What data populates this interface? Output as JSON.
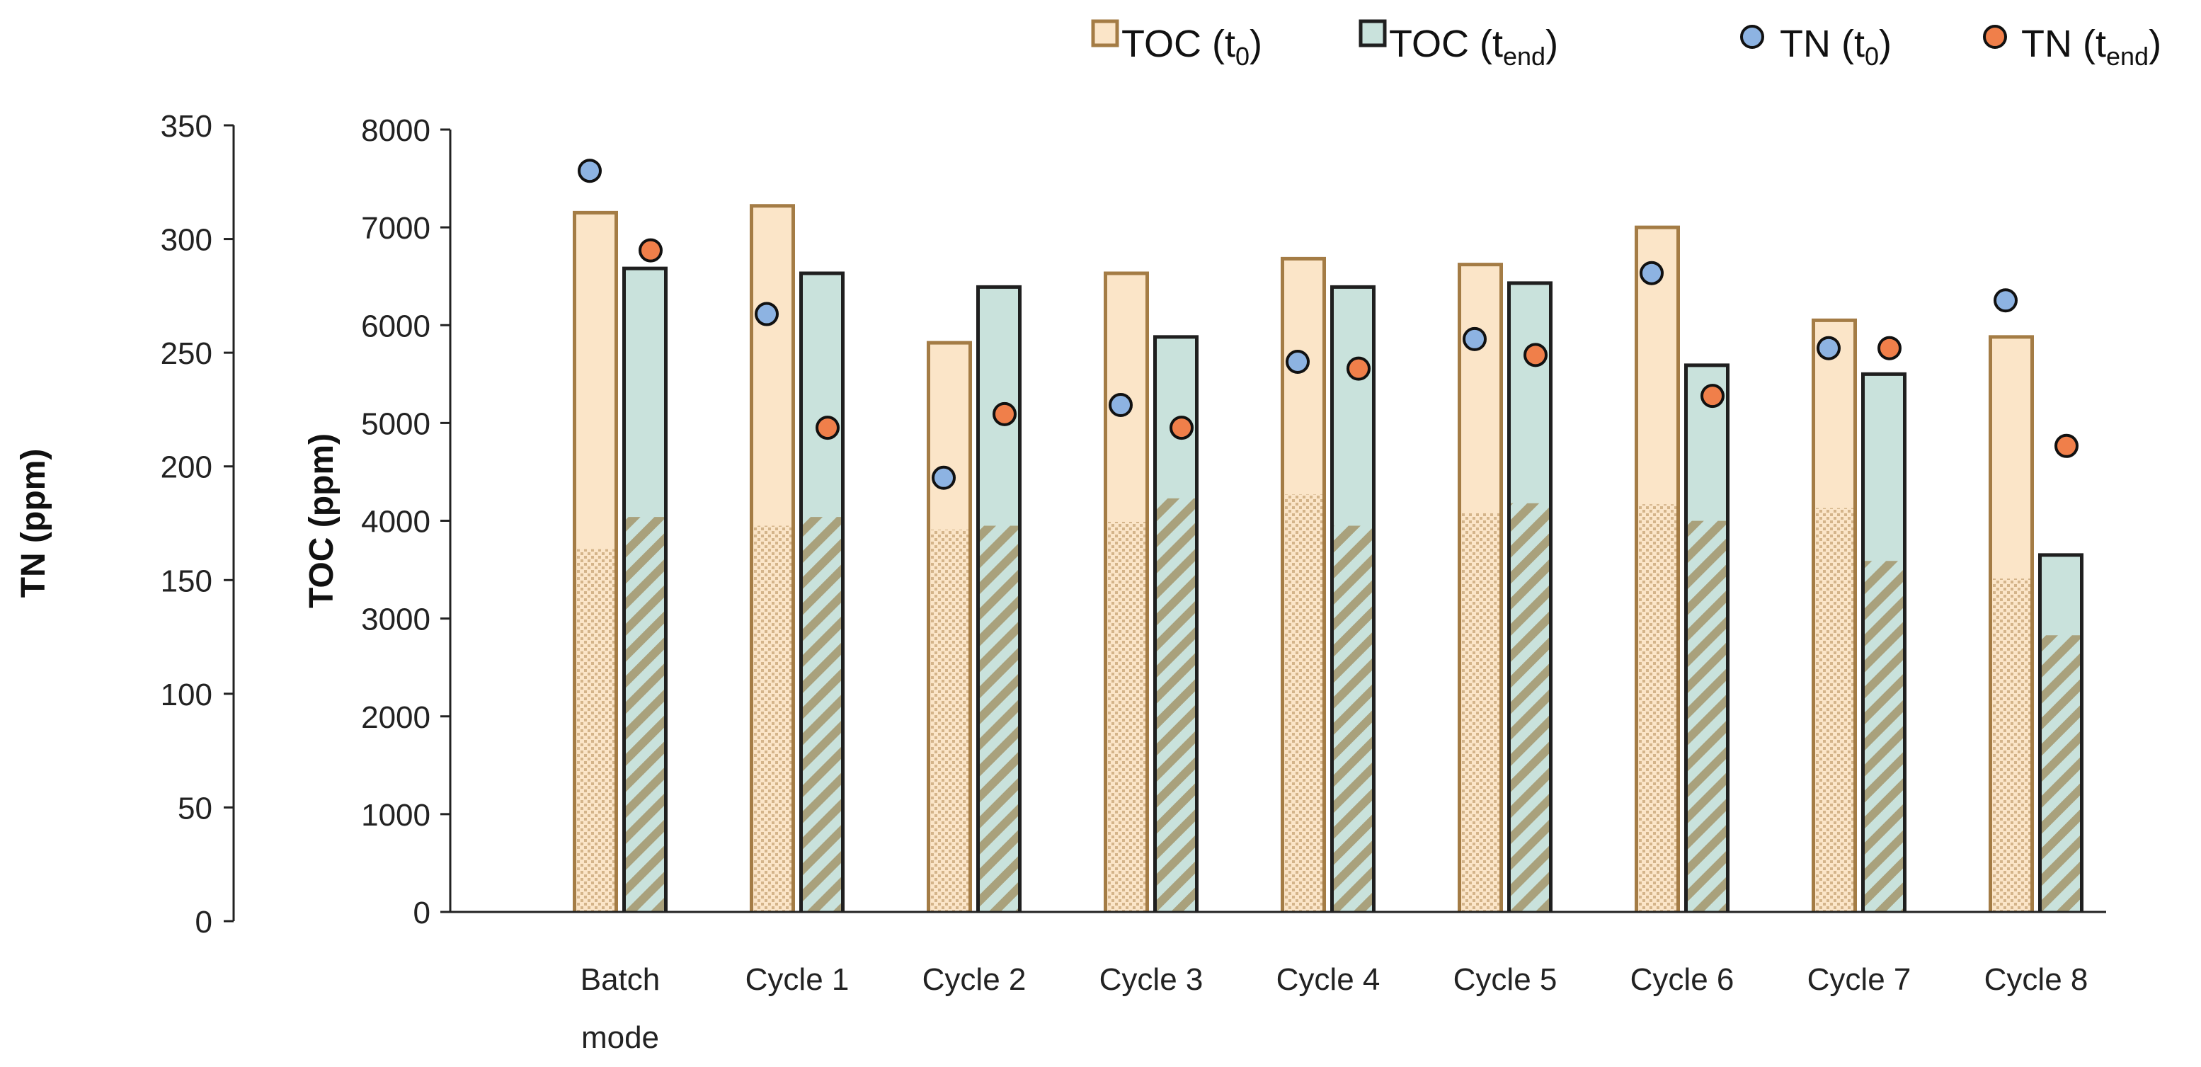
{
  "chart_data": {
    "type": "bar",
    "categories": [
      [
        "Batch",
        "mode"
      ],
      [
        "Cycle 1"
      ],
      [
        "Cycle 2"
      ],
      [
        "Cycle 3"
      ],
      [
        "Cycle 4"
      ],
      [
        "Cycle 5"
      ],
      [
        "Cycle 6"
      ],
      [
        "Cycle 7"
      ],
      [
        "Cycle 8"
      ]
    ],
    "series": [
      {
        "name": "TOC (t0)",
        "legend_main": "TOC (t",
        "legend_sub": "0",
        "legend_close": ")",
        "kind": "bar",
        "axis": "left",
        "values": [
          7150,
          7220,
          5820,
          6530,
          6680,
          6620,
          7000,
          6050,
          5880
        ],
        "lower_values": [
          3720,
          3960,
          3920,
          4000,
          4280,
          4090,
          4180,
          4140,
          3420
        ],
        "fill": "#fbe5c8",
        "stroke": "#a47c45",
        "pattern_color": "#d4b48a"
      },
      {
        "name": "TOC (tend)",
        "legend_main": "TOC (t",
        "legend_sub": "end",
        "legend_close": ")",
        "kind": "bar",
        "axis": "left",
        "values": [
          6580,
          6530,
          6390,
          5880,
          6390,
          6430,
          5590,
          5500,
          3650
        ],
        "lower_values": [
          4050,
          4050,
          3960,
          4240,
          3960,
          4190,
          4010,
          3600,
          2840
        ],
        "fill": "#c9e2dc",
        "stroke": "#1f1f1f",
        "pattern_color": "#a9a17c"
      },
      {
        "name": "TN (t0)",
        "legend_main": "TN (t",
        "legend_sub": "0",
        "legend_close": ")",
        "kind": "point",
        "axis": "right",
        "values": [
          330,
          267,
          195,
          227,
          246,
          256,
          285,
          252,
          273
        ],
        "color": "#8db3e2"
      },
      {
        "name": "TN (tend)",
        "legend_main": "TN (t",
        "legend_sub": "end",
        "legend_close": ")",
        "kind": "point",
        "axis": "right",
        "values": [
          295,
          217,
          223,
          217,
          243,
          249,
          231,
          252,
          209
        ],
        "color": "#f07f4a"
      }
    ],
    "y_left": {
      "label": "TOC (ppm)",
      "ylim": [
        0,
        8000
      ],
      "ticks": [
        "0",
        "1000",
        "2000",
        "3000",
        "4000",
        "5000",
        "6000",
        "7000",
        "8000"
      ]
    },
    "y_right": {
      "label": "TN (ppm)",
      "ylim": [
        0,
        350
      ],
      "ticks": [
        "0",
        "50",
        "100",
        "150",
        "200",
        "250",
        "300",
        "350"
      ]
    },
    "legend_position": "top",
    "grid": false
  }
}
